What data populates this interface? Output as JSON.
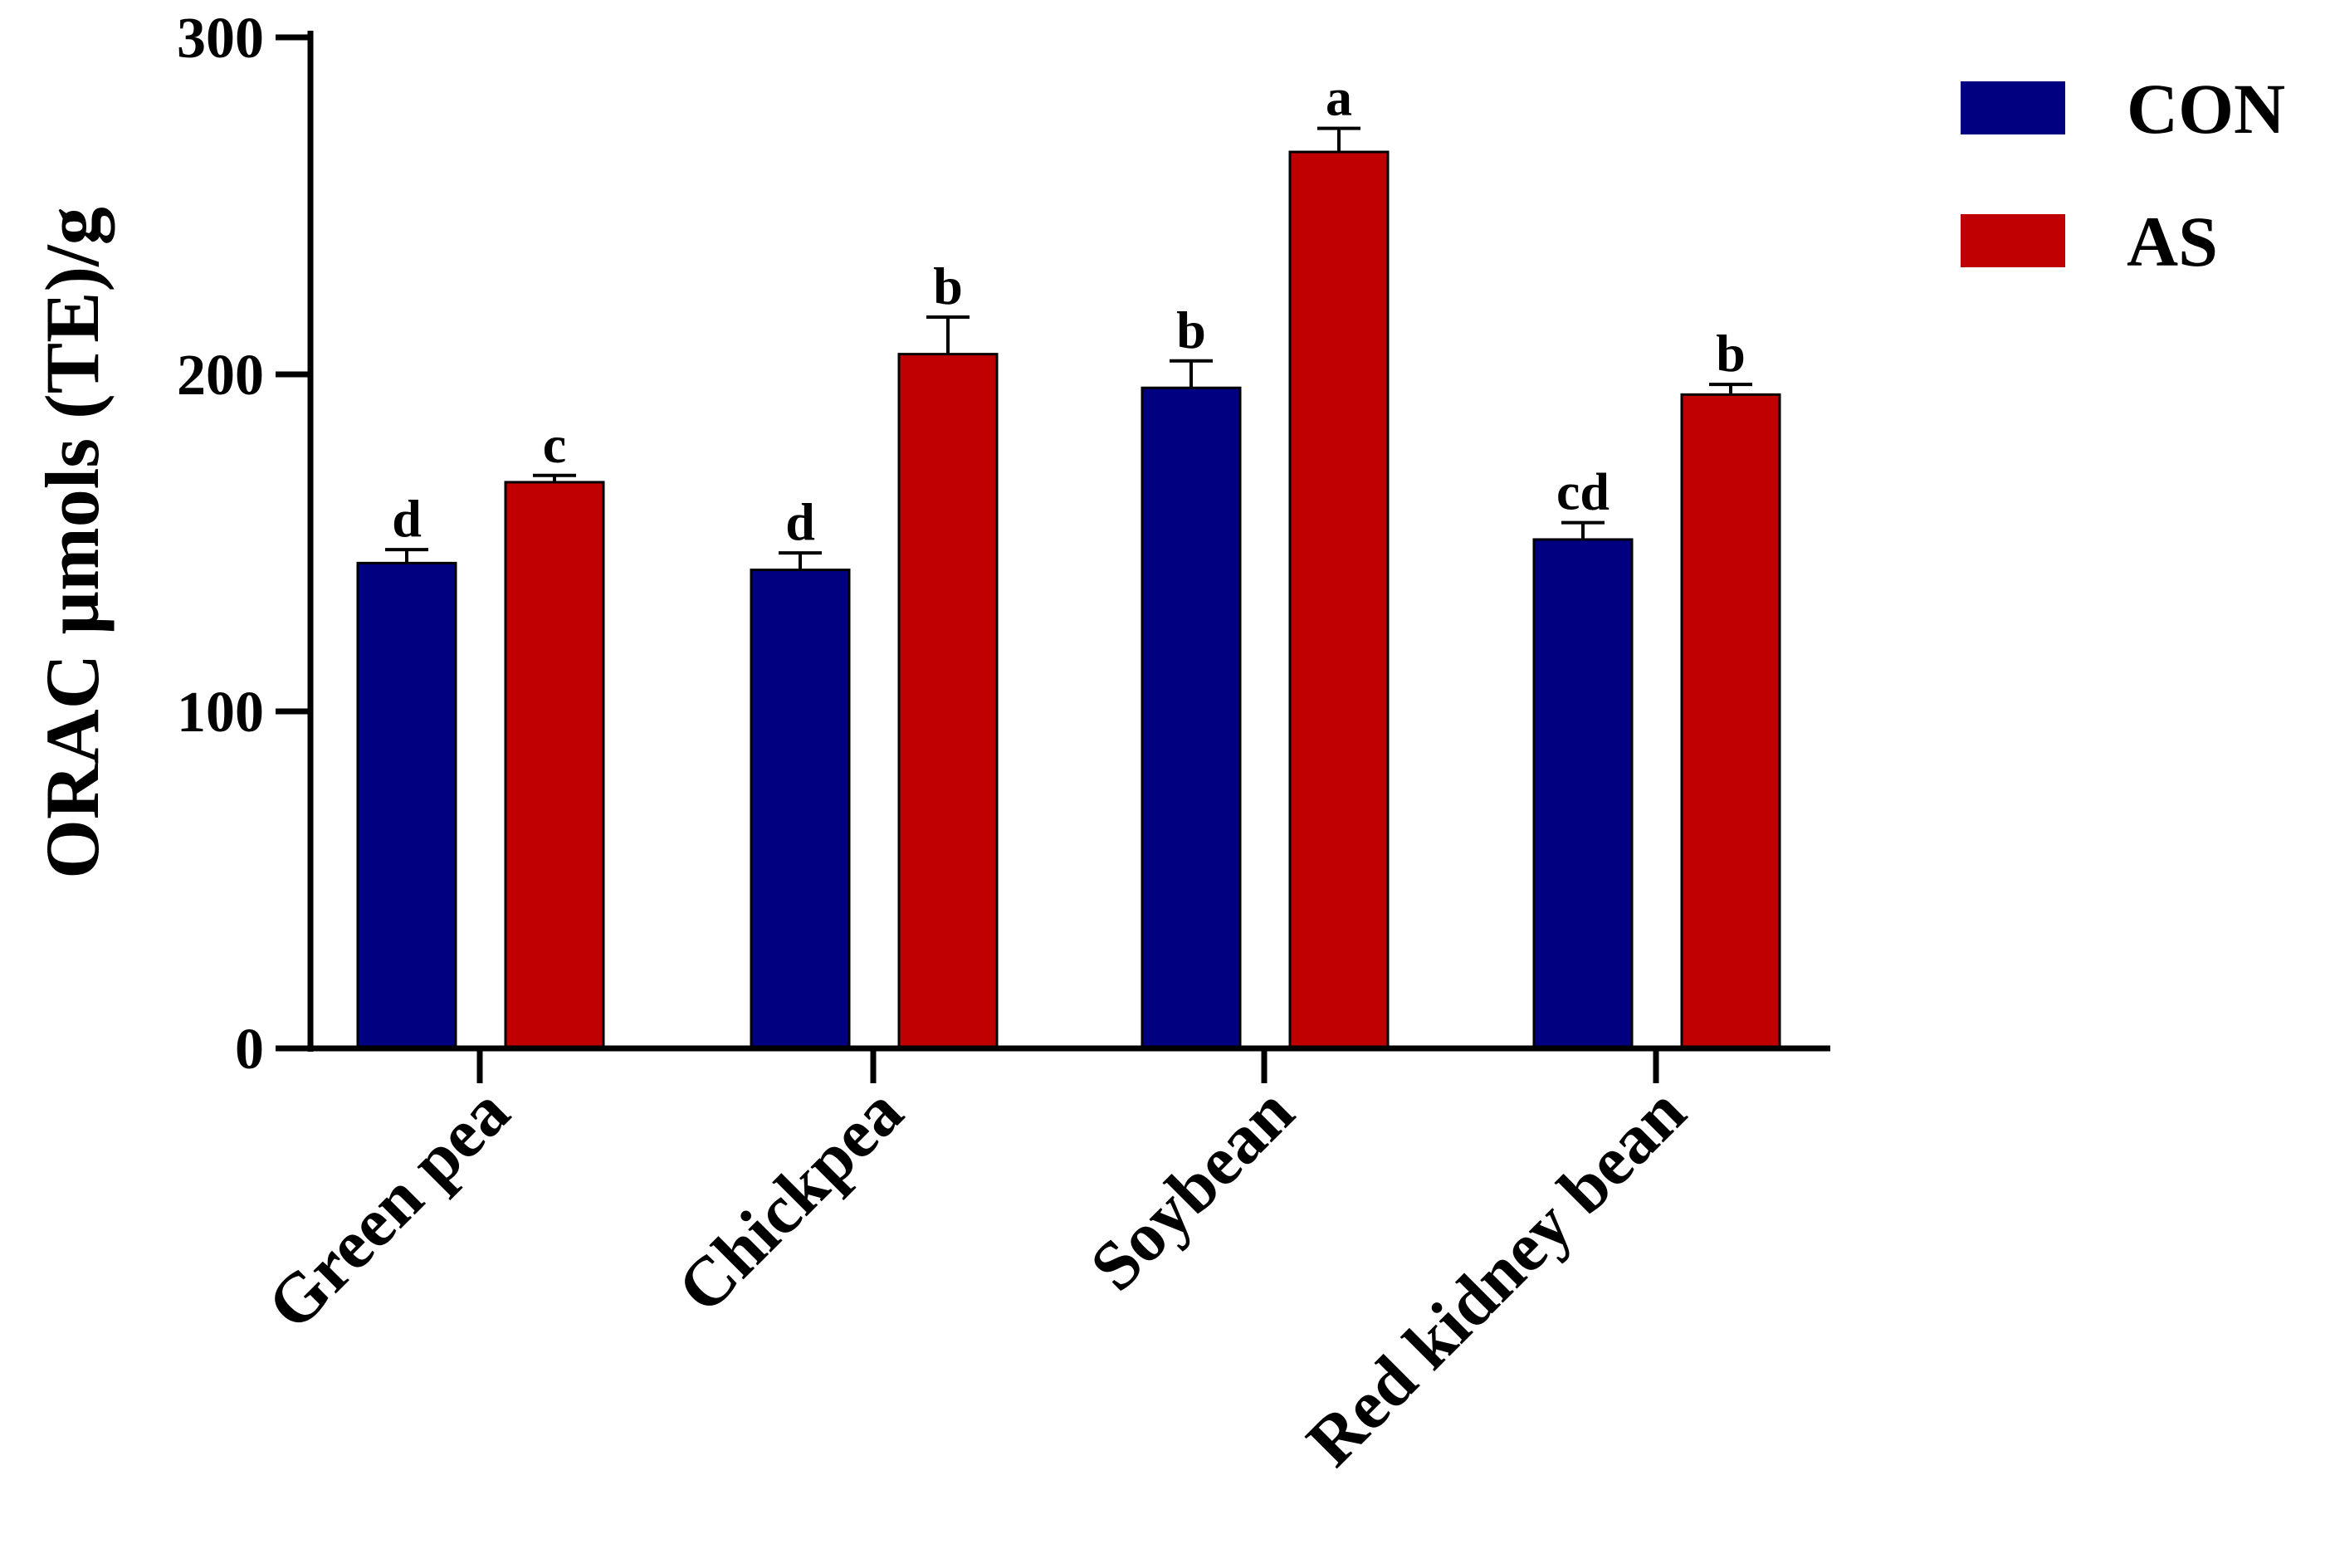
{
  "chart_data": {
    "type": "bar",
    "title": "",
    "xlabel": "",
    "ylabel": "ORAC µmols (TE)/g",
    "ylim": [
      0,
      300
    ],
    "yticks": [
      0,
      100,
      200,
      300
    ],
    "categories": [
      "Green pea",
      "Chickpea",
      "Soybean",
      "Red kidney bean"
    ],
    "series": [
      {
        "name": "CON",
        "color": "#000080",
        "values": [
          144,
          142,
          196,
          151
        ],
        "errors": [
          4,
          5,
          8,
          5
        ],
        "labels": [
          "d",
          "d",
          "b",
          "cd"
        ]
      },
      {
        "name": "AS",
        "color": "#C00000",
        "values": [
          168,
          206,
          266,
          194
        ],
        "errors": [
          2,
          11,
          7,
          3
        ],
        "labels": [
          "c",
          "b",
          "a",
          "b"
        ]
      }
    ],
    "legend_position": "top-right",
    "grid": false
  }
}
